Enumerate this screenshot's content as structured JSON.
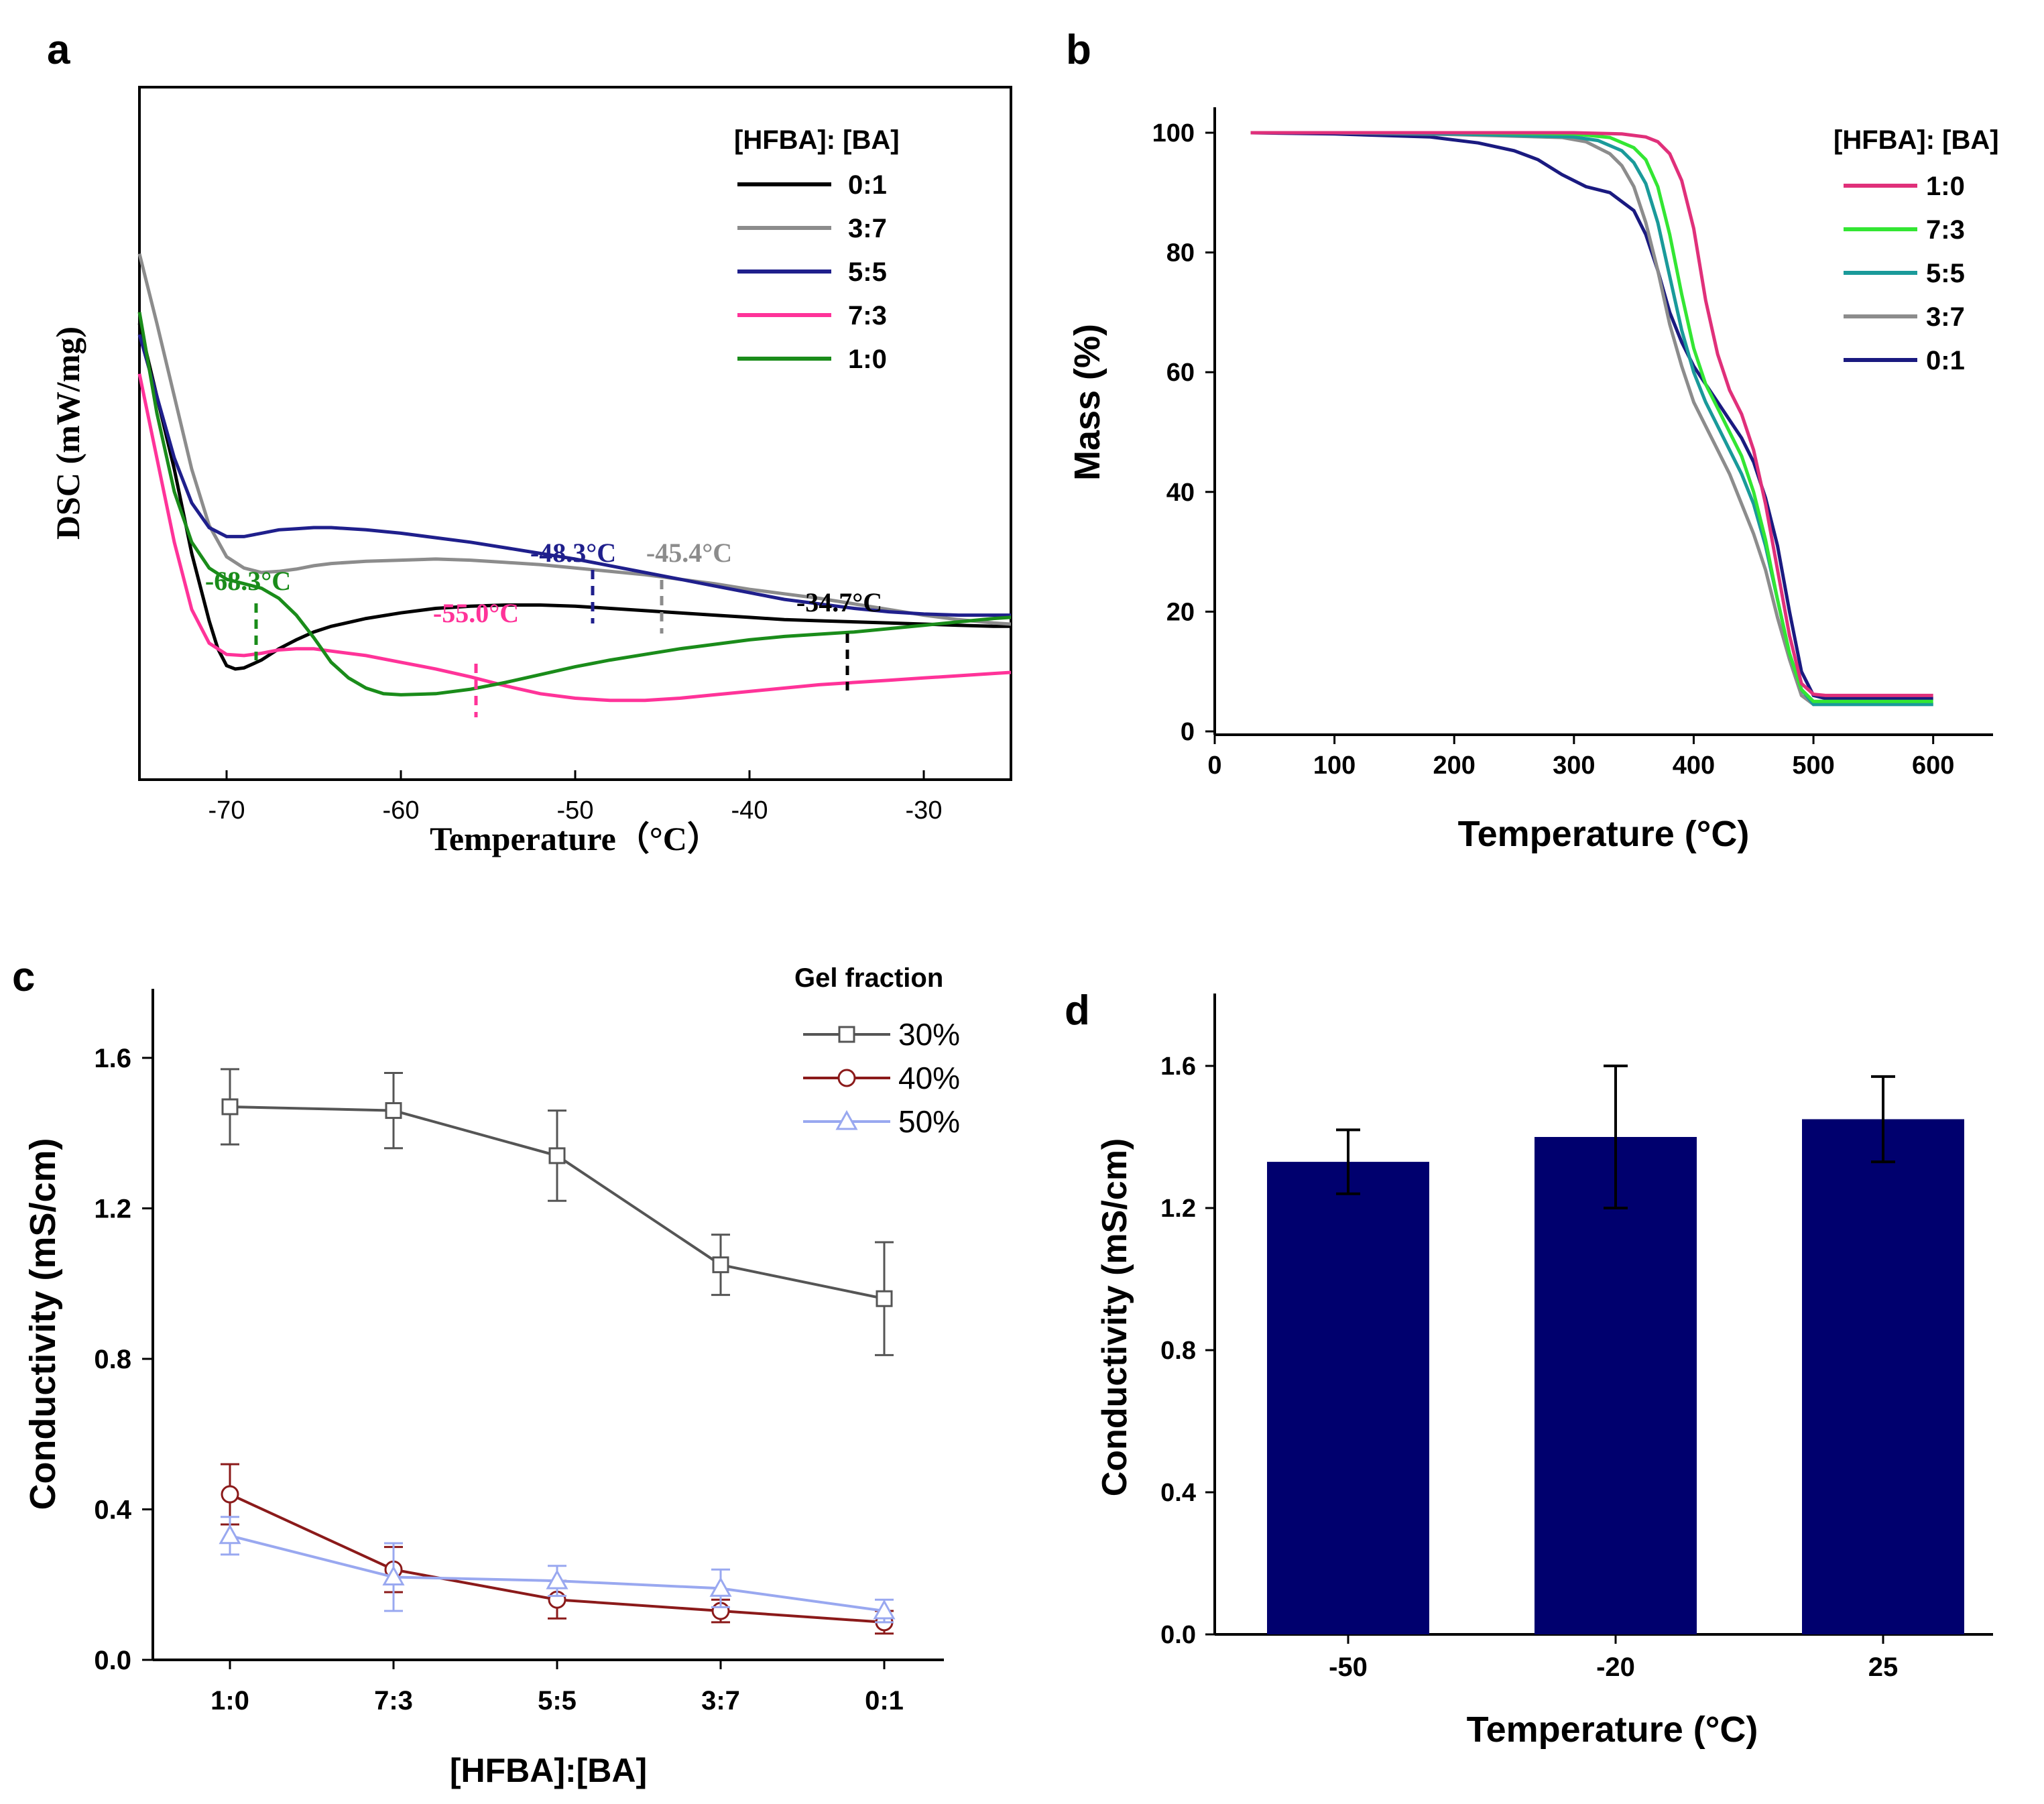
{
  "chart_data": [
    {
      "panel": "a",
      "type": "line",
      "ylabel": "DSC (mW/mg)",
      "xlabel": "Temperature（°C）",
      "xlim": [
        -75,
        -25
      ],
      "xticks": [
        -70,
        -60,
        -50,
        -40,
        -30
      ],
      "yticks": [],
      "legend_title": "[HFBA]: [BA]",
      "legend_position": "top-right",
      "series": [
        {
          "name": "0:1",
          "color": "#000000",
          "x": [
            -75,
            -74,
            -73,
            -72,
            -71,
            -70.5,
            -70,
            -69.5,
            -69,
            -68,
            -67,
            -66,
            -65,
            -64,
            -62,
            -60,
            -58,
            -56,
            -54,
            -52,
            -50,
            -48,
            -46,
            -44,
            -42,
            -40,
            -38,
            -36,
            -34,
            -32,
            -30,
            -28,
            -26,
            -25
          ],
          "y": [
            3.1,
            2.45,
            1.8,
            1.05,
            0.45,
            0.2,
            0.05,
            0.02,
            0.03,
            0.1,
            0.2,
            0.28,
            0.35,
            0.4,
            0.47,
            0.52,
            0.56,
            0.58,
            0.59,
            0.59,
            0.58,
            0.56,
            0.54,
            0.52,
            0.5,
            0.48,
            0.46,
            0.45,
            0.44,
            0.43,
            0.42,
            0.41,
            0.4,
            0.4
          ]
        },
        {
          "name": "3:7",
          "color": "#8c8c8c",
          "x": [
            -75,
            -74,
            -73,
            -72,
            -71,
            -70,
            -69,
            -68,
            -67,
            -66,
            -65,
            -64,
            -62,
            -60,
            -58,
            -56,
            -54,
            -52,
            -50,
            -48,
            -46,
            -44,
            -42,
            -40,
            -38,
            -36,
            -34,
            -32,
            -30,
            -28,
            -26,
            -25
          ],
          "y": [
            3.72,
            3.1,
            2.45,
            1.8,
            1.3,
            1.02,
            0.92,
            0.88,
            0.89,
            0.91,
            0.94,
            0.96,
            0.98,
            0.99,
            1.0,
            0.99,
            0.97,
            0.95,
            0.92,
            0.89,
            0.86,
            0.82,
            0.78,
            0.73,
            0.69,
            0.65,
            0.6,
            0.55,
            0.5,
            0.46,
            0.43,
            0.42
          ]
        },
        {
          "name": "5:5",
          "color": "#1f1f8c",
          "x": [
            -75,
            -74,
            -73,
            -72,
            -71,
            -70,
            -69,
            -68,
            -67,
            -66,
            -65,
            -64,
            -62,
            -60,
            -58,
            -56,
            -54,
            -52,
            -50,
            -48,
            -46,
            -44,
            -42,
            -40,
            -38,
            -36,
            -34,
            -32,
            -30,
            -28,
            -26,
            -25
          ],
          "y": [
            3.0,
            2.45,
            1.9,
            1.5,
            1.28,
            1.2,
            1.2,
            1.23,
            1.26,
            1.27,
            1.28,
            1.28,
            1.26,
            1.23,
            1.19,
            1.15,
            1.1,
            1.05,
            1.0,
            0.94,
            0.88,
            0.82,
            0.76,
            0.7,
            0.64,
            0.6,
            0.56,
            0.53,
            0.51,
            0.5,
            0.5,
            0.5
          ]
        },
        {
          "name": "7:3",
          "color": "#ff3399",
          "x": [
            -75,
            -74,
            -73,
            -72,
            -71,
            -70,
            -69,
            -68,
            -67,
            -66,
            -65,
            -64,
            -62,
            -60,
            -58,
            -56,
            -54,
            -52,
            -50,
            -48,
            -46,
            -44,
            -42,
            -40,
            -38,
            -36,
            -34,
            -32,
            -30,
            -28,
            -26,
            -25
          ],
          "y": [
            2.65,
            1.9,
            1.15,
            0.55,
            0.25,
            0.15,
            0.14,
            0.16,
            0.19,
            0.2,
            0.2,
            0.18,
            0.14,
            0.08,
            0.02,
            -0.05,
            -0.13,
            -0.2,
            -0.24,
            -0.26,
            -0.26,
            -0.24,
            -0.21,
            -0.18,
            -0.15,
            -0.12,
            -0.1,
            -0.08,
            -0.06,
            -0.04,
            -0.02,
            -0.01
          ]
        },
        {
          "name": "1:0",
          "color": "#1a8c1a",
          "x": [
            -75,
            -74,
            -73,
            -72,
            -71,
            -70,
            -69,
            -68,
            -67,
            -66,
            -65,
            -64,
            -63,
            -62,
            -61,
            -60,
            -58,
            -56,
            -54,
            -52,
            -50,
            -48,
            -46,
            -44,
            -42,
            -40,
            -38,
            -36,
            -34,
            -32,
            -30,
            -28,
            -26,
            -25
          ],
          "y": [
            3.2,
            2.3,
            1.6,
            1.15,
            0.92,
            0.82,
            0.78,
            0.74,
            0.65,
            0.5,
            0.3,
            0.08,
            -0.06,
            -0.15,
            -0.2,
            -0.21,
            -0.2,
            -0.16,
            -0.1,
            -0.03,
            0.04,
            0.1,
            0.15,
            0.2,
            0.24,
            0.28,
            0.31,
            0.33,
            0.35,
            0.38,
            0.41,
            0.44,
            0.47,
            0.48
          ]
        }
      ],
      "annotations": [
        {
          "text": "-68.3°C",
          "x": -68.3,
          "color": "#1a8c1a"
        },
        {
          "text": "-55.0°C",
          "x": -55.0,
          "color": "#ff3399"
        },
        {
          "text": "-48.3°C",
          "x": -48.3,
          "color": "#1f1f8c"
        },
        {
          "text": "-45.4°C",
          "x": -45.4,
          "color": "#8c8c8c"
        },
        {
          "text": "-34.7°C",
          "x": -34.7,
          "color": "#000000"
        }
      ]
    },
    {
      "panel": "b",
      "type": "line",
      "xlabel": "Temperature (°C)",
      "ylabel": "Mass (%)",
      "xlim": [
        0,
        650
      ],
      "ylim": [
        0,
        105
      ],
      "xticks": [
        0,
        100,
        200,
        300,
        400,
        500,
        600
      ],
      "yticks": [
        0,
        20,
        40,
        60,
        80,
        100
      ],
      "legend_title": "[HFBA]: [BA]",
      "legend_position": "top-right",
      "series": [
        {
          "name": "1:0",
          "color": "#e0307a",
          "x": [
            30,
            100,
            200,
            300,
            340,
            360,
            370,
            380,
            390,
            400,
            410,
            420,
            430,
            440,
            450,
            460,
            470,
            480,
            490,
            500,
            510,
            600
          ],
          "y": [
            100,
            100,
            100,
            100,
            99.8,
            99.3,
            98.5,
            96.5,
            92,
            84,
            72,
            63,
            57,
            53,
            47,
            38,
            27,
            16,
            8,
            6.2,
            6,
            6
          ]
        },
        {
          "name": "7:3",
          "color": "#33e633",
          "x": [
            30,
            100,
            200,
            300,
            330,
            350,
            360,
            370,
            380,
            390,
            400,
            410,
            420,
            430,
            440,
            450,
            460,
            470,
            480,
            490,
            500,
            510,
            600
          ],
          "y": [
            100,
            100,
            100,
            99.8,
            99.2,
            97.5,
            95.5,
            91,
            83,
            73,
            64,
            58,
            54,
            50,
            46,
            40,
            32,
            22,
            13,
            7,
            5,
            5,
            5
          ]
        },
        {
          "name": "5:5",
          "color": "#1a9a9a",
          "x": [
            30,
            100,
            200,
            300,
            320,
            340,
            350,
            360,
            370,
            380,
            390,
            400,
            410,
            420,
            430,
            440,
            450,
            460,
            470,
            480,
            490,
            500,
            510,
            600
          ],
          "y": [
            100,
            100,
            99.8,
            99.3,
            98.7,
            97,
            95,
            91.5,
            85,
            76,
            67,
            60,
            55,
            51,
            47,
            43,
            38,
            31,
            22,
            13,
            7,
            4.5,
            4.5,
            4.5
          ]
        },
        {
          "name": "3:7",
          "color": "#8c8c8c",
          "x": [
            30,
            100,
            200,
            290,
            310,
            330,
            340,
            350,
            360,
            370,
            380,
            390,
            400,
            410,
            420,
            430,
            440,
            450,
            460,
            470,
            480,
            490,
            500,
            510,
            600
          ],
          "y": [
            100,
            100,
            99.7,
            99.2,
            98.5,
            96.5,
            94.5,
            91,
            85,
            77,
            68,
            61,
            55,
            51,
            47,
            43,
            38,
            33,
            27,
            19,
            12,
            6,
            4.5,
            4.5,
            4.5
          ]
        },
        {
          "name": "0:1",
          "color": "#1a1a80",
          "x": [
            30,
            100,
            180,
            220,
            250,
            270,
            290,
            310,
            330,
            350,
            360,
            370,
            380,
            390,
            400,
            410,
            420,
            430,
            440,
            450,
            460,
            470,
            480,
            490,
            500,
            510,
            600
          ],
          "y": [
            100,
            99.8,
            99.3,
            98.3,
            97,
            95.5,
            93,
            91,
            90,
            87,
            83,
            77,
            70,
            65,
            61,
            58,
            55,
            52,
            49,
            45,
            39,
            31,
            20,
            10,
            6,
            5.5,
            5.5
          ]
        }
      ]
    },
    {
      "panel": "c",
      "type": "line",
      "xlabel": "[HFBA]:[BA]",
      "ylabel": "Conductivity (mS/cm)",
      "categories": [
        "1:0",
        "7:3",
        "5:5",
        "3:7",
        "0:1"
      ],
      "ylim": [
        0,
        1.7
      ],
      "yticks": [
        "0.0",
        "0.4",
        "0.8",
        "1.2",
        "1.6"
      ],
      "legend_title": "Gel fraction",
      "legend_position": "top-right",
      "series": [
        {
          "name": "30%",
          "color": "#555555",
          "marker": "square",
          "values": [
            1.47,
            1.46,
            1.34,
            1.05,
            0.96
          ],
          "errors": [
            0.1,
            0.1,
            0.12,
            0.08,
            0.15
          ]
        },
        {
          "name": "40%",
          "color": "#8b1a1a",
          "marker": "circle",
          "values": [
            0.44,
            0.24,
            0.16,
            0.13,
            0.1
          ],
          "errors": [
            0.08,
            0.06,
            0.05,
            0.03,
            0.03
          ]
        },
        {
          "name": "50%",
          "color": "#99a8f0",
          "marker": "triangle",
          "values": [
            0.33,
            0.22,
            0.21,
            0.19,
            0.13
          ],
          "errors": [
            0.05,
            0.09,
            0.04,
            0.05,
            0.03
          ]
        }
      ]
    },
    {
      "panel": "d",
      "type": "bar",
      "xlabel": "Temperature (°C)",
      "ylabel": "Conductivity (mS/cm)",
      "categories": [
        "-50",
        "-20",
        "25"
      ],
      "values": [
        1.33,
        1.4,
        1.45
      ],
      "errors": [
        0.09,
        0.2,
        0.12
      ],
      "ylim": [
        0,
        1.8
      ],
      "yticks": [
        "0.0",
        "0.4",
        "0.8",
        "1.2",
        "1.6"
      ],
      "bar_color": "#00006e"
    }
  ]
}
